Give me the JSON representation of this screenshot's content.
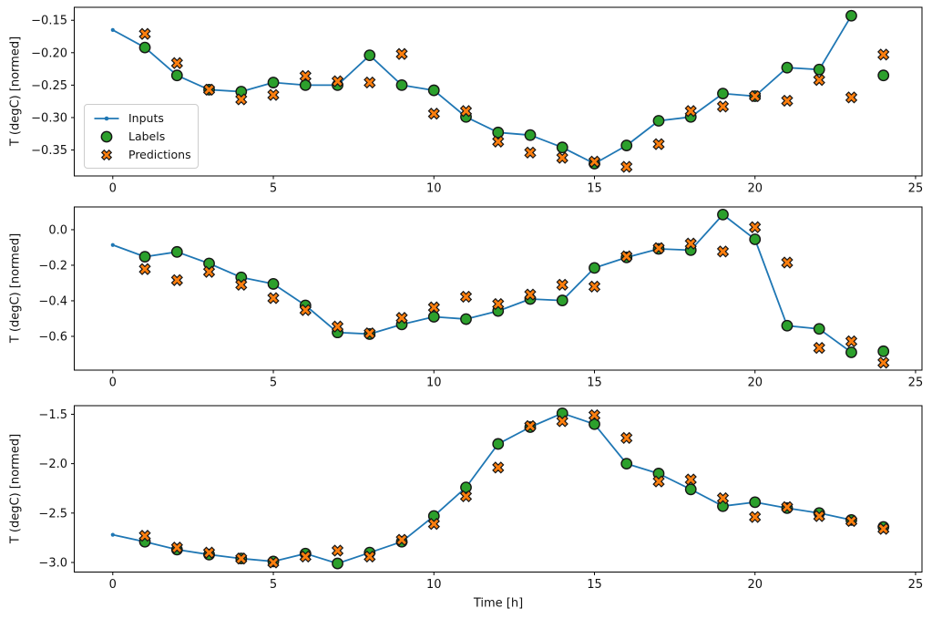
{
  "figure": {
    "background": "#ffffff"
  },
  "colors": {
    "inputs": "#1f77b4",
    "labels": "#2ca02c",
    "predictions": "#ff7f0e",
    "marker_edge": "#161616",
    "spine": "#000000",
    "text": "#111111",
    "legend_border": "#cccccc"
  },
  "legend": {
    "location": "upper left"
  },
  "xlabel": "Time [h]",
  "chart_data": [
    {
      "type": "line",
      "ylabel": "T (degC) [normed]",
      "xlim": [
        -1.2,
        25.2
      ],
      "ylim": [
        -0.39,
        -0.13
      ],
      "xticks": [
        0,
        5,
        10,
        15,
        20,
        25
      ],
      "xticklabels": [
        "0",
        "5",
        "10",
        "15",
        "20",
        "25"
      ],
      "yticks": [
        -0.15,
        -0.2,
        -0.25,
        -0.3,
        -0.35
      ],
      "yticklabels": [
        "−0.15",
        "−0.20",
        "−0.25",
        "−0.30",
        "−0.35"
      ],
      "series": [
        {
          "name": "Inputs",
          "kind": "line",
          "marker": "dot",
          "color": "#1f77b4",
          "x": [
            0,
            1,
            2,
            3,
            4,
            5,
            6,
            7,
            8,
            9,
            10,
            11,
            12,
            13,
            14,
            15,
            16,
            17,
            18,
            19,
            20,
            21,
            22,
            23
          ],
          "y": [
            -0.165,
            -0.192,
            -0.235,
            -0.257,
            -0.26,
            -0.246,
            -0.25,
            -0.25,
            -0.204,
            -0.25,
            -0.258,
            -0.299,
            -0.323,
            -0.327,
            -0.346,
            -0.371,
            -0.343,
            -0.305,
            -0.299,
            -0.263,
            -0.267,
            -0.223,
            -0.226,
            -0.143
          ]
        },
        {
          "name": "Labels",
          "kind": "scatter",
          "marker": "circle",
          "color": "#2ca02c",
          "x": [
            1,
            2,
            3,
            4,
            5,
            6,
            7,
            8,
            9,
            10,
            11,
            12,
            13,
            14,
            15,
            16,
            17,
            18,
            19,
            20,
            21,
            22,
            23,
            24
          ],
          "y": [
            -0.192,
            -0.235,
            -0.257,
            -0.26,
            -0.246,
            -0.25,
            -0.25,
            -0.204,
            -0.25,
            -0.258,
            -0.299,
            -0.323,
            -0.327,
            -0.346,
            -0.371,
            -0.343,
            -0.305,
            -0.299,
            -0.263,
            -0.267,
            -0.223,
            -0.226,
            -0.143,
            -0.235
          ]
        },
        {
          "name": "Predictions",
          "kind": "scatter",
          "marker": "X",
          "color": "#ff7f0e",
          "x": [
            1,
            2,
            3,
            4,
            5,
            6,
            7,
            8,
            9,
            10,
            11,
            12,
            13,
            14,
            15,
            16,
            17,
            18,
            19,
            20,
            21,
            22,
            23,
            24
          ],
          "y": [
            -0.171,
            -0.216,
            -0.257,
            -0.272,
            -0.265,
            -0.236,
            -0.244,
            -0.246,
            -0.202,
            -0.294,
            -0.29,
            -0.337,
            -0.354,
            -0.362,
            -0.368,
            -0.376,
            -0.341,
            -0.29,
            -0.283,
            -0.267,
            -0.274,
            -0.242,
            -0.269,
            -0.203
          ]
        }
      ]
    },
    {
      "type": "line",
      "ylabel": "T (degC) [normed]",
      "xlim": [
        -1.2,
        25.2
      ],
      "ylim": [
        -0.79,
        0.128
      ],
      "xticks": [
        0,
        5,
        10,
        15,
        20,
        25
      ],
      "xticklabels": [
        "0",
        "5",
        "10",
        "15",
        "20",
        "25"
      ],
      "yticks": [
        0.0,
        -0.2,
        -0.4,
        -0.6
      ],
      "yticklabels": [
        "0.0",
        "−0.2",
        "−0.4",
        "−0.6"
      ],
      "series": [
        {
          "name": "Inputs",
          "kind": "line",
          "marker": "dot",
          "color": "#1f77b4",
          "x": [
            0,
            1,
            2,
            3,
            4,
            5,
            6,
            7,
            8,
            9,
            10,
            11,
            12,
            13,
            14,
            15,
            16,
            17,
            18,
            19,
            20,
            21,
            22,
            23
          ],
          "y": [
            -0.086,
            -0.152,
            -0.125,
            -0.19,
            -0.268,
            -0.305,
            -0.426,
            -0.578,
            -0.587,
            -0.533,
            -0.49,
            -0.503,
            -0.457,
            -0.39,
            -0.398,
            -0.215,
            -0.156,
            -0.108,
            -0.115,
            0.085,
            -0.054,
            -0.54,
            -0.558,
            -0.69
          ]
        },
        {
          "name": "Labels",
          "kind": "scatter",
          "marker": "circle",
          "color": "#2ca02c",
          "x": [
            1,
            2,
            3,
            4,
            5,
            6,
            7,
            8,
            9,
            10,
            11,
            12,
            13,
            14,
            15,
            16,
            17,
            18,
            19,
            20,
            21,
            22,
            23,
            24
          ],
          "y": [
            -0.152,
            -0.125,
            -0.19,
            -0.268,
            -0.305,
            -0.426,
            -0.578,
            -0.587,
            -0.533,
            -0.49,
            -0.503,
            -0.457,
            -0.39,
            -0.398,
            -0.215,
            -0.156,
            -0.108,
            -0.115,
            0.085,
            -0.054,
            -0.54,
            -0.558,
            -0.69,
            -0.684
          ]
        },
        {
          "name": "Predictions",
          "kind": "scatter",
          "marker": "X",
          "color": "#ff7f0e",
          "x": [
            1,
            2,
            3,
            4,
            5,
            6,
            7,
            8,
            9,
            10,
            11,
            12,
            13,
            14,
            15,
            16,
            17,
            18,
            19,
            20,
            21,
            22,
            23,
            24
          ],
          "y": [
            -0.222,
            -0.284,
            -0.237,
            -0.31,
            -0.385,
            -0.452,
            -0.545,
            -0.583,
            -0.496,
            -0.437,
            -0.377,
            -0.418,
            -0.365,
            -0.31,
            -0.32,
            -0.15,
            -0.104,
            -0.078,
            -0.123,
            0.014,
            -0.185,
            -0.665,
            -0.628,
            -0.748
          ]
        }
      ]
    },
    {
      "type": "line",
      "ylabel": "T (degC) [normed]",
      "xlabel": "Time [h]",
      "xlim": [
        -1.2,
        25.2
      ],
      "ylim": [
        -3.097,
        -1.413
      ],
      "xticks": [
        0,
        5,
        10,
        15,
        20,
        25
      ],
      "xticklabels": [
        "0",
        "5",
        "10",
        "15",
        "20",
        "25"
      ],
      "yticks": [
        -1.5,
        -2.0,
        -2.5,
        -3.0
      ],
      "yticklabels": [
        "−1.5",
        "−2.0",
        "−2.5",
        "−3.0"
      ],
      "series": [
        {
          "name": "Inputs",
          "kind": "line",
          "marker": "dot",
          "color": "#1f77b4",
          "x": [
            0,
            1,
            2,
            3,
            4,
            5,
            6,
            7,
            8,
            9,
            10,
            11,
            12,
            13,
            14,
            15,
            16,
            17,
            18,
            19,
            20,
            21,
            22,
            23
          ],
          "y": [
            -2.72,
            -2.79,
            -2.87,
            -2.92,
            -2.96,
            -2.99,
            -2.91,
            -3.01,
            -2.9,
            -2.79,
            -2.53,
            -2.24,
            -1.8,
            -1.63,
            -1.49,
            -1.6,
            -2.0,
            -2.1,
            -2.26,
            -2.43,
            -2.39,
            -2.45,
            -2.5,
            -2.57
          ]
        },
        {
          "name": "Labels",
          "kind": "scatter",
          "marker": "circle",
          "color": "#2ca02c",
          "x": [
            1,
            2,
            3,
            4,
            5,
            6,
            7,
            8,
            9,
            10,
            11,
            12,
            13,
            14,
            15,
            16,
            17,
            18,
            19,
            20,
            21,
            22,
            23,
            24
          ],
          "y": [
            -2.79,
            -2.87,
            -2.92,
            -2.96,
            -2.99,
            -2.91,
            -3.01,
            -2.9,
            -2.79,
            -2.53,
            -2.24,
            -1.8,
            -1.63,
            -1.49,
            -1.6,
            -2.0,
            -2.1,
            -2.26,
            -2.43,
            -2.39,
            -2.45,
            -2.5,
            -2.57,
            -2.64
          ]
        },
        {
          "name": "Predictions",
          "kind": "scatter",
          "marker": "X",
          "color": "#ff7f0e",
          "x": [
            1,
            2,
            3,
            4,
            5,
            6,
            7,
            8,
            9,
            10,
            11,
            12,
            13,
            14,
            15,
            16,
            17,
            18,
            19,
            20,
            21,
            22,
            23,
            24
          ],
          "y": [
            -2.73,
            -2.85,
            -2.9,
            -2.96,
            -3.0,
            -2.94,
            -2.88,
            -2.94,
            -2.77,
            -2.61,
            -2.33,
            -2.04,
            -1.62,
            -1.57,
            -1.51,
            -1.74,
            -2.18,
            -2.16,
            -2.35,
            -2.54,
            -2.44,
            -2.53,
            -2.58,
            -2.66
          ]
        }
      ]
    }
  ]
}
